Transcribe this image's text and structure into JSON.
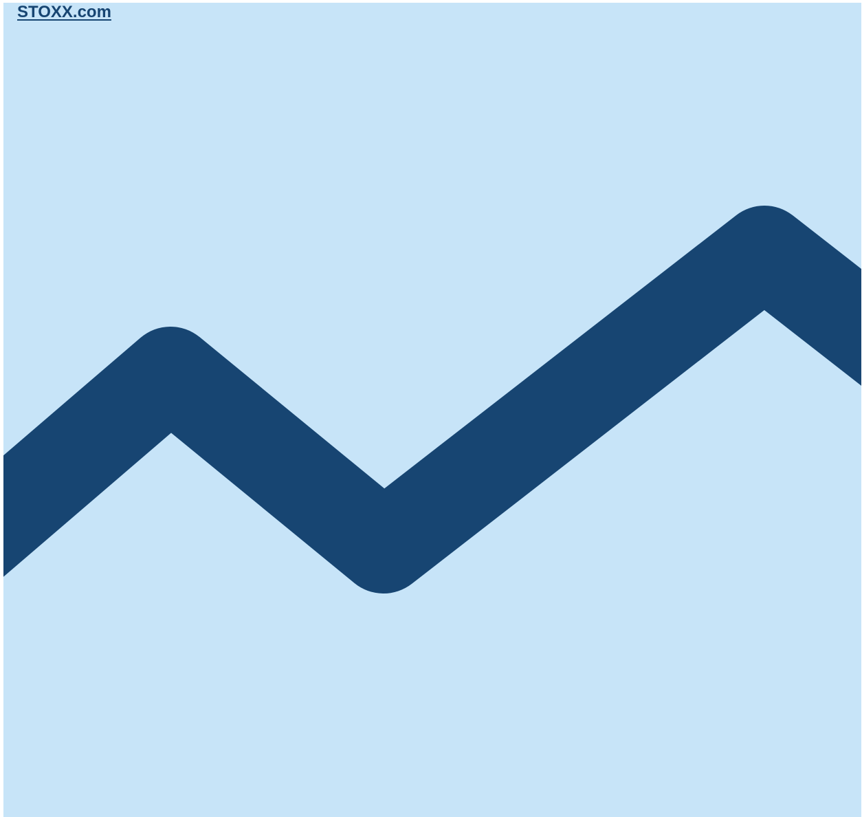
{
  "header": {
    "link_text": "STOXX.com"
  },
  "colors": {
    "background": "#c7e4f8",
    "line": "#174572",
    "link": "#174572"
  },
  "graphic": {
    "icon": "trend-line-icon"
  }
}
